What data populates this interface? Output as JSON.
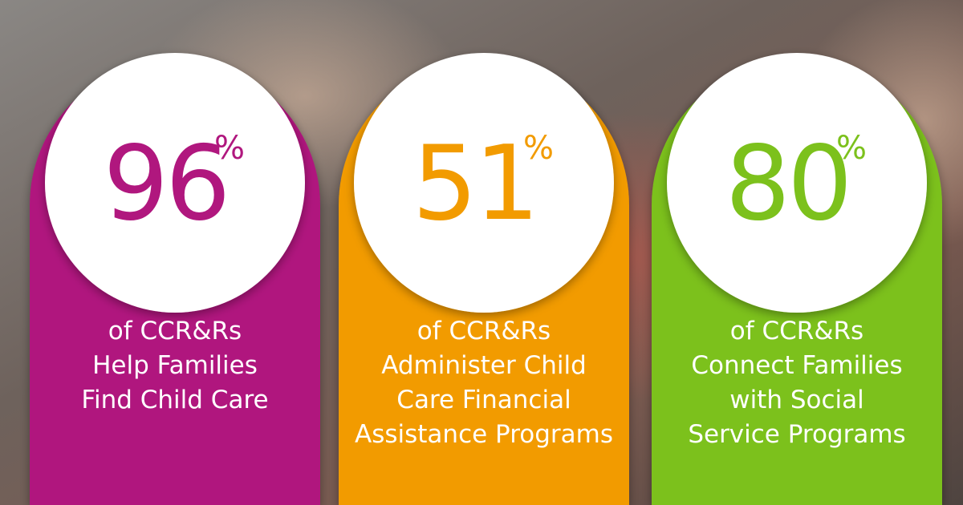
{
  "stats": [
    {
      "value": "96",
      "unit": "%",
      "lines": [
        "of CCR&Rs",
        "Help Families",
        "Find Child Care"
      ],
      "color": "#b0177e"
    },
    {
      "value": "51",
      "unit": "%",
      "lines": [
        "of CCR&Rs",
        "Administer Child",
        "Care Financial",
        "Assistance Programs"
      ],
      "color": "#f29b00"
    },
    {
      "value": "80",
      "unit": "%",
      "lines": [
        "of CCR&Rs",
        "Connect Families",
        "with Social",
        "Service Programs"
      ],
      "color": "#7cc11c"
    }
  ]
}
